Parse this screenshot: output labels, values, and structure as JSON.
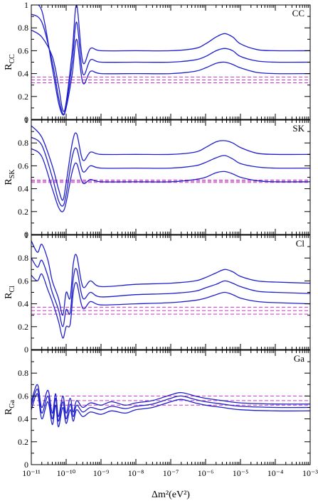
{
  "chart_data": [
    {
      "type": "line",
      "panel_label": "CC",
      "ylabel_main": "R",
      "ylabel_sub": "CC",
      "xscale": "log",
      "xlim": [
        1e-11,
        0.001
      ],
      "ylim": [
        0,
        1
      ],
      "yticks": [
        "0",
        "0.2",
        "0.4",
        "0.6",
        "0.8",
        "1"
      ],
      "band": {
        "values": [
          0.32,
          0.345,
          0.37
        ],
        "color": "#cc33cc",
        "style": "dashed"
      },
      "series": [
        {
          "x": [
            1e-11,
            2e-11,
            4e-11,
            6e-11,
            8e-11,
            1e-10,
            1.5e-10,
            2e-10,
            3e-10,
            5e-10,
            1e-09,
            1e-08,
            1e-07,
            5e-07,
            1e-06,
            2e-06,
            3.5e-06,
            6e-06,
            1e-05,
            3e-05,
            0.0001,
            0.001
          ],
          "y": [
            0.78,
            0.72,
            0.55,
            0.3,
            0.08,
            0.15,
            0.6,
            1.0,
            0.5,
            0.62,
            0.6,
            0.6,
            0.6,
            0.62,
            0.66,
            0.72,
            0.75,
            0.72,
            0.66,
            0.61,
            0.6,
            0.6
          ]
        },
        {
          "x": [
            1e-11,
            2e-11,
            4e-11,
            6e-11,
            8e-11,
            1e-10,
            1.5e-10,
            2e-10,
            3e-10,
            5e-10,
            1e-09,
            1e-08,
            1e-07,
            5e-07,
            1e-06,
            2e-06,
            3.5e-06,
            6e-06,
            1e-05,
            3e-05,
            0.0001,
            0.001
          ],
          "y": [
            0.92,
            0.85,
            0.5,
            0.2,
            0.05,
            0.12,
            0.5,
            0.85,
            0.4,
            0.52,
            0.5,
            0.5,
            0.5,
            0.52,
            0.55,
            0.6,
            0.62,
            0.6,
            0.55,
            0.51,
            0.5,
            0.5
          ]
        },
        {
          "x": [
            1e-11,
            2e-11,
            4e-11,
            6e-11,
            8e-11,
            1e-10,
            1.5e-10,
            2e-10,
            3e-10,
            5e-10,
            1e-09,
            1e-08,
            1e-07,
            5e-07,
            1e-06,
            2e-06,
            3.5e-06,
            6e-06,
            1e-05,
            3e-05,
            0.0001,
            0.001
          ],
          "y": [
            1.0,
            0.95,
            0.45,
            0.15,
            0.04,
            0.1,
            0.4,
            0.7,
            0.32,
            0.42,
            0.4,
            0.4,
            0.4,
            0.42,
            0.45,
            0.49,
            0.5,
            0.48,
            0.45,
            0.41,
            0.4,
            0.4
          ]
        }
      ]
    },
    {
      "type": "line",
      "panel_label": "SK",
      "ylabel_main": "R",
      "ylabel_sub": "SK",
      "xscale": "log",
      "xlim": [
        1e-11,
        0.001
      ],
      "ylim": [
        0,
        1
      ],
      "yticks": [
        "0",
        "0.2",
        "0.4",
        "0.6",
        "0.8",
        "1"
      ],
      "band": {
        "values": [
          0.455,
          0.465,
          0.475
        ],
        "color": "#cc33cc",
        "style": "dashed"
      },
      "series": [
        {
          "x": [
            1e-11,
            2e-11,
            4e-11,
            6e-11,
            8e-11,
            1e-10,
            1.5e-10,
            2e-10,
            3e-10,
            5e-10,
            1e-09,
            1e-08,
            1e-07,
            5e-07,
            1e-06,
            2e-06,
            3.5e-06,
            6e-06,
            1e-05,
            3e-05,
            0.0001,
            0.001
          ],
          "y": [
            0.95,
            0.85,
            0.6,
            0.4,
            0.3,
            0.45,
            0.8,
            0.88,
            0.65,
            0.72,
            0.7,
            0.7,
            0.7,
            0.72,
            0.76,
            0.81,
            0.82,
            0.8,
            0.76,
            0.71,
            0.7,
            0.7
          ]
        },
        {
          "x": [
            1e-11,
            2e-11,
            4e-11,
            6e-11,
            8e-11,
            1e-10,
            1.5e-10,
            2e-10,
            3e-10,
            5e-10,
            1e-09,
            1e-08,
            1e-07,
            5e-07,
            1e-06,
            2e-06,
            3.5e-06,
            6e-06,
            1e-05,
            3e-05,
            0.0001,
            0.001
          ],
          "y": [
            0.85,
            0.78,
            0.5,
            0.3,
            0.25,
            0.35,
            0.68,
            0.75,
            0.55,
            0.6,
            0.58,
            0.58,
            0.58,
            0.6,
            0.63,
            0.67,
            0.69,
            0.66,
            0.62,
            0.59,
            0.58,
            0.58
          ]
        },
        {
          "x": [
            1e-11,
            2e-11,
            4e-11,
            6e-11,
            8e-11,
            1e-10,
            1.5e-10,
            2e-10,
            3e-10,
            5e-10,
            1e-09,
            1e-08,
            1e-07,
            5e-07,
            1e-06,
            2e-06,
            3.5e-06,
            6e-06,
            1e-05,
            3e-05,
            0.0001,
            0.001
          ],
          "y": [
            0.75,
            0.68,
            0.4,
            0.24,
            0.2,
            0.28,
            0.55,
            0.62,
            0.45,
            0.48,
            0.46,
            0.46,
            0.46,
            0.48,
            0.5,
            0.54,
            0.55,
            0.53,
            0.5,
            0.47,
            0.46,
            0.46
          ]
        }
      ]
    },
    {
      "type": "line",
      "panel_label": "Cl",
      "ylabel_main": "R",
      "ylabel_sub": "Cl",
      "xscale": "log",
      "xlim": [
        1e-11,
        0.001
      ],
      "ylim": [
        0,
        1
      ],
      "yticks": [
        "0",
        "0.2",
        "0.4",
        "0.6",
        "0.8",
        "1"
      ],
      "band": {
        "values": [
          0.31,
          0.34,
          0.37
        ],
        "color": "#cc33cc",
        "style": "dashed"
      },
      "series": [
        {
          "x": [
            1e-11,
            1.5e-11,
            2e-11,
            3e-11,
            4e-11,
            6e-11,
            8e-11,
            1e-10,
            1.3e-10,
            1.6e-10,
            2e-10,
            3e-10,
            5e-10,
            1e-09,
            1e-08,
            1e-07,
            5e-07,
            1e-06,
            2e-06,
            3.5e-06,
            6e-06,
            1e-05,
            3e-05,
            0.0001,
            0.001
          ],
          "y": [
            0.95,
            0.85,
            0.92,
            0.78,
            0.6,
            0.45,
            0.3,
            0.5,
            0.45,
            0.75,
            0.82,
            0.55,
            0.6,
            0.55,
            0.57,
            0.58,
            0.6,
            0.63,
            0.67,
            0.7,
            0.68,
            0.64,
            0.6,
            0.59,
            0.58
          ]
        },
        {
          "x": [
            1e-11,
            1.5e-11,
            2e-11,
            3e-11,
            4e-11,
            6e-11,
            8e-11,
            1e-10,
            1.3e-10,
            1.6e-10,
            2e-10,
            3e-10,
            5e-10,
            1e-09,
            1e-08,
            1e-07,
            5e-07,
            1e-06,
            2e-06,
            3.5e-06,
            6e-06,
            1e-05,
            3e-05,
            0.0001,
            0.001
          ],
          "y": [
            0.8,
            0.72,
            0.78,
            0.64,
            0.5,
            0.35,
            0.2,
            0.35,
            0.32,
            0.62,
            0.7,
            0.45,
            0.5,
            0.46,
            0.48,
            0.49,
            0.51,
            0.54,
            0.57,
            0.6,
            0.58,
            0.55,
            0.51,
            0.5,
            0.49
          ]
        },
        {
          "x": [
            1e-11,
            1.5e-11,
            2e-11,
            3e-11,
            4e-11,
            6e-11,
            8e-11,
            1e-10,
            1.3e-10,
            1.6e-10,
            2e-10,
            3e-10,
            5e-10,
            1e-09,
            1e-08,
            1e-07,
            5e-07,
            1e-06,
            2e-06,
            3.5e-06,
            6e-06,
            1e-05,
            3e-05,
            0.0001,
            0.001
          ],
          "y": [
            0.65,
            0.6,
            0.66,
            0.52,
            0.42,
            0.25,
            0.1,
            0.2,
            0.22,
            0.5,
            0.58,
            0.36,
            0.42,
            0.39,
            0.4,
            0.41,
            0.43,
            0.45,
            0.48,
            0.5,
            0.48,
            0.45,
            0.42,
            0.41,
            0.4
          ]
        }
      ]
    },
    {
      "type": "line",
      "panel_label": "Ga",
      "ylabel_main": "R",
      "ylabel_sub": "Ga",
      "xscale": "log",
      "xlim": [
        1e-11,
        0.001
      ],
      "ylim": [
        0,
        1
      ],
      "yticks": [
        "0",
        "0.2",
        "0.4",
        "0.6",
        "0.8"
      ],
      "band": {
        "values": [
          0.52,
          0.56,
          0.6
        ],
        "color": "#cc33cc",
        "style": "dashed"
      },
      "series": [
        {
          "x": [
            1e-11,
            1.5e-11,
            2e-11,
            3e-11,
            4e-11,
            5e-11,
            6e-11,
            8e-11,
            1e-10,
            1.3e-10,
            1.6e-10,
            2e-10,
            3e-10,
            5e-10,
            1e-09,
            2e-09,
            5e-09,
            1e-08,
            3e-08,
            1e-07,
            2e-07,
            5e-07,
            1e-06,
            3e-06,
            1e-05,
            0.0001,
            0.001
          ],
          "y": [
            0.55,
            0.7,
            0.5,
            0.65,
            0.45,
            0.62,
            0.42,
            0.6,
            0.45,
            0.58,
            0.46,
            0.56,
            0.5,
            0.54,
            0.52,
            0.55,
            0.52,
            0.54,
            0.56,
            0.61,
            0.63,
            0.6,
            0.58,
            0.56,
            0.54,
            0.53,
            0.53
          ]
        },
        {
          "x": [
            1e-11,
            1.5e-11,
            2e-11,
            3e-11,
            4e-11,
            5e-11,
            6e-11,
            8e-11,
            1e-10,
            1.3e-10,
            1.6e-10,
            2e-10,
            3e-10,
            5e-10,
            1e-09,
            2e-09,
            5e-09,
            1e-08,
            3e-08,
            1e-07,
            2e-07,
            5e-07,
            1e-06,
            3e-06,
            1e-05,
            0.0001,
            0.001
          ],
          "y": [
            0.52,
            0.66,
            0.45,
            0.6,
            0.4,
            0.58,
            0.38,
            0.55,
            0.4,
            0.53,
            0.42,
            0.52,
            0.46,
            0.5,
            0.48,
            0.51,
            0.49,
            0.51,
            0.53,
            0.58,
            0.6,
            0.57,
            0.55,
            0.53,
            0.51,
            0.5,
            0.5
          ]
        },
        {
          "x": [
            1e-11,
            1.5e-11,
            2e-11,
            3e-11,
            4e-11,
            5e-11,
            6e-11,
            8e-11,
            1e-10,
            1.3e-10,
            1.6e-10,
            2e-10,
            3e-10,
            5e-10,
            1e-09,
            2e-09,
            5e-09,
            1e-08,
            3e-08,
            1e-07,
            2e-07,
            5e-07,
            1e-06,
            3e-06,
            1e-05,
            0.0001,
            0.001
          ],
          "y": [
            0.48,
            0.62,
            0.4,
            0.55,
            0.35,
            0.52,
            0.33,
            0.5,
            0.36,
            0.48,
            0.38,
            0.48,
            0.42,
            0.46,
            0.44,
            0.47,
            0.45,
            0.48,
            0.5,
            0.55,
            0.57,
            0.54,
            0.52,
            0.5,
            0.48,
            0.47,
            0.47
          ]
        }
      ]
    }
  ],
  "xlabel": "Δm²(eV²)",
  "x_tick_labels": [
    "10⁻¹¹",
    "10⁻¹⁰",
    "10⁻⁹",
    "10⁻⁸",
    "10⁻⁷",
    "10⁻⁶",
    "10⁻⁵",
    "10⁻⁴",
    "10⁻³"
  ],
  "colors": {
    "curves": "#1f1fcc",
    "band": "#cc33cc",
    "axes": "#000000"
  }
}
